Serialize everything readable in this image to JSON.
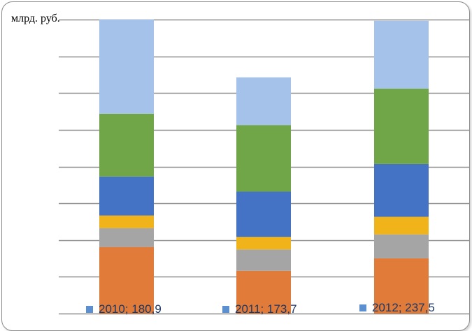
{
  "chart_data": {
    "type": "bar",
    "stacked": true,
    "unit_label": "млрд. руб.",
    "categories": [
      "2010",
      "2011",
      "2012"
    ],
    "series": [
      {
        "color": "#e07b39",
        "values": [
          53,
          34,
          44
        ]
      },
      {
        "color": "#a5a5a5",
        "values": [
          15,
          17,
          19
        ]
      },
      {
        "color": "#f0b41a",
        "values": [
          10,
          10,
          14
        ]
      },
      {
        "color": "#4472c4",
        "values": [
          31,
          36,
          42
        ]
      },
      {
        "color": "#70a548",
        "values": [
          50,
          53,
          60
        ]
      },
      {
        "color": "#a4c2ea",
        "values": [
          75,
          38,
          54
        ]
      }
    ],
    "ylim": [
      0,
      234
    ],
    "grid": true,
    "legend": [
      {
        "text": "2010; 180,9"
      },
      {
        "text": "2011; 173,7"
      },
      {
        "text": "2012; 237,5"
      }
    ]
  }
}
